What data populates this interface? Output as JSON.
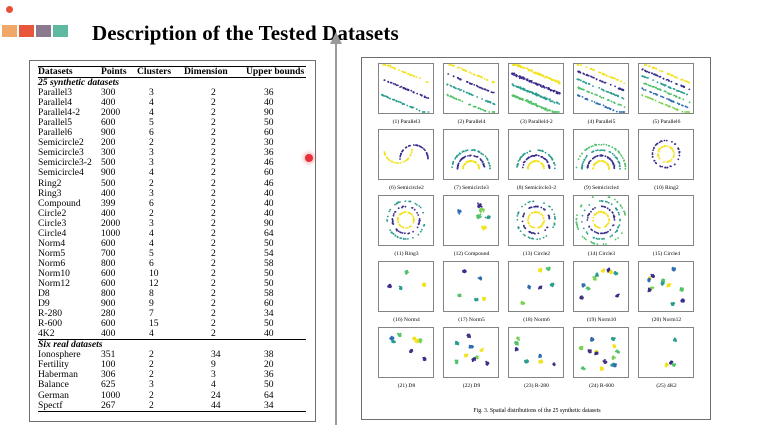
{
  "page": {
    "title": "Description of the Tested Datasets"
  },
  "toolbar": {
    "swatch_colors": [
      "#f0a868",
      "#e8573c",
      "#8b7a8f",
      "#5fb8a0"
    ],
    "indicator_color": "#e8503a"
  },
  "table": {
    "headers": {
      "datasets": "Datasets",
      "points": "Points",
      "clusters": "Clusters",
      "dimension": "Dimension",
      "upper_bounds": "Upper bounds"
    },
    "synthetic_label": "25 synthetic datasets",
    "synthetic": [
      {
        "name": "Parallel3",
        "points": "300",
        "clusters": "3",
        "dimension": "2",
        "upper": "36"
      },
      {
        "name": "Parallel4",
        "points": "400",
        "clusters": "4",
        "dimension": "2",
        "upper": "40"
      },
      {
        "name": "Parallel4-2",
        "points": "2000",
        "clusters": "4",
        "dimension": "2",
        "upper": "90"
      },
      {
        "name": "Parallel5",
        "points": "600",
        "clusters": "5",
        "dimension": "2",
        "upper": "50"
      },
      {
        "name": "Parallel6",
        "points": "900",
        "clusters": "6",
        "dimension": "2",
        "upper": "60"
      },
      {
        "name": "Semicircle2",
        "points": "200",
        "clusters": "2",
        "dimension": "2",
        "upper": "30"
      },
      {
        "name": "Semicircle3",
        "points": "300",
        "clusters": "3",
        "dimension": "2",
        "upper": "36"
      },
      {
        "name": "Semicircle3-2",
        "points": "500",
        "clusters": "3",
        "dimension": "2",
        "upper": "46"
      },
      {
        "name": "Semicircle4",
        "points": "900",
        "clusters": "4",
        "dimension": "2",
        "upper": "60"
      },
      {
        "name": "Ring2",
        "points": "500",
        "clusters": "2",
        "dimension": "2",
        "upper": "46"
      },
      {
        "name": "Ring3",
        "points": "400",
        "clusters": "3",
        "dimension": "2",
        "upper": "40"
      },
      {
        "name": "Compound",
        "points": "399",
        "clusters": "6",
        "dimension": "2",
        "upper": "40"
      },
      {
        "name": "Circle2",
        "points": "400",
        "clusters": "2",
        "dimension": "2",
        "upper": "40"
      },
      {
        "name": "Circle3",
        "points": "2000",
        "clusters": "3",
        "dimension": "2",
        "upper": "90"
      },
      {
        "name": "Circle4",
        "points": "1000",
        "clusters": "4",
        "dimension": "2",
        "upper": "64"
      },
      {
        "name": "Norm4",
        "points": "600",
        "clusters": "4",
        "dimension": "2",
        "upper": "50"
      },
      {
        "name": "Norm5",
        "points": "700",
        "clusters": "5",
        "dimension": "2",
        "upper": "54"
      },
      {
        "name": "Norm6",
        "points": "800",
        "clusters": "6",
        "dimension": "2",
        "upper": "58"
      },
      {
        "name": "Norm10",
        "points": "600",
        "clusters": "10",
        "dimension": "2",
        "upper": "50"
      },
      {
        "name": "Norm12",
        "points": "600",
        "clusters": "12",
        "dimension": "2",
        "upper": "50"
      },
      {
        "name": "D8",
        "points": "800",
        "clusters": "8",
        "dimension": "2",
        "upper": "58"
      },
      {
        "name": "D9",
        "points": "900",
        "clusters": "9",
        "dimension": "2",
        "upper": "60"
      },
      {
        "name": "R-280",
        "points": "280",
        "clusters": "7",
        "dimension": "2",
        "upper": "34"
      },
      {
        "name": "R-600",
        "points": "600",
        "clusters": "15",
        "dimension": "2",
        "upper": "50"
      },
      {
        "name": "4K2",
        "points": "400",
        "clusters": "4",
        "dimension": "2",
        "upper": "40"
      }
    ],
    "real_label": "Six real datasets",
    "real": [
      {
        "name": "Ionosphere",
        "points": "351",
        "clusters": "2",
        "dimension": "34",
        "upper": "38"
      },
      {
        "name": "Fertility",
        "points": "100",
        "clusters": "2",
        "dimension": "9",
        "upper": "20"
      },
      {
        "name": "Haberman",
        "points": "306",
        "clusters": "2",
        "dimension": "3",
        "upper": "36"
      },
      {
        "name": "Balance",
        "points": "625",
        "clusters": "3",
        "dimension": "4",
        "upper": "50"
      },
      {
        "name": "German",
        "points": "1000",
        "clusters": "2",
        "dimension": "24",
        "upper": "64"
      },
      {
        "name": "Spectf",
        "points": "267",
        "clusters": "2",
        "dimension": "44",
        "upper": "34"
      }
    ]
  },
  "figure": {
    "captions": [
      "(1) Parallel3",
      "(2) Parallel4",
      "(3) Parallel4-2",
      "(4) Parallel5",
      "(5) Parallel6",
      "(6) Semicircle2",
      "(7) Semicircle3",
      "(8) Semicircle3-2",
      "(9) Semicircle4",
      "(10) Ring2",
      "(11) Ring3",
      "(12) Compound",
      "(13) Circle2",
      "(14) Circle3",
      "(15) Circle4",
      "(16) Norm4",
      "(17) Norm5",
      "(18) Norm6",
      "(19) Norm10",
      "(20) Norm12",
      "(21) D8",
      "(22) D9",
      "(23) R-280",
      "(24) R-600",
      "(25) 4K2"
    ],
    "caption": "Fig. 3.  Spatial distributions of the 25 synthetic datasets",
    "palette": [
      "#f2e21b",
      "#3a2e8c",
      "#2a9d8f",
      "#53c26a",
      "#2f6db0",
      "#7ad151",
      "#46327e"
    ]
  }
}
